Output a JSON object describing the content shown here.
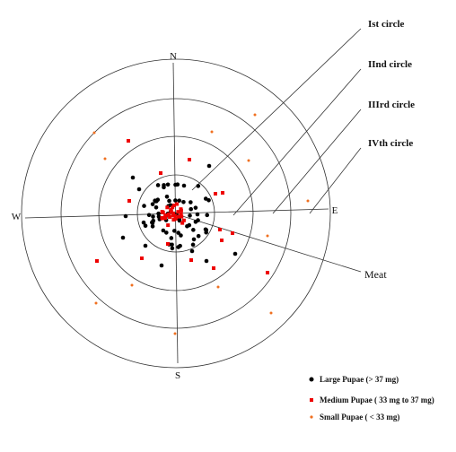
{
  "directions": {
    "north": "N",
    "south": "S",
    "west": "W",
    "east": "E"
  },
  "callouts": [
    "Ist  circle",
    "IInd  circle",
    "IIIrd  circle",
    "IVth  circle",
    "Meat"
  ],
  "legend": [
    "Large Pupae (> 37 mg)",
    "Medium Pupae ( 33 mg to 37 mg)",
    "Small Pupae ( < 33 mg)"
  ]
}
